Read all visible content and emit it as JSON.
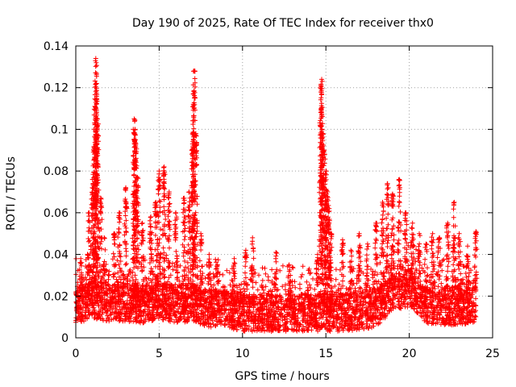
{
  "chart_data": {
    "type": "scatter",
    "title": "Day 190 of 2025, Rate Of TEC Index for receiver thx0",
    "xlabel": "GPS time / hours",
    "ylabel": "ROTI / TECUs",
    "xlim": [
      0,
      25
    ],
    "ylim": [
      0,
      0.14
    ],
    "x_ticks": [
      0,
      5,
      10,
      15,
      20,
      25
    ],
    "x_tick_labels": [
      "0",
      "5",
      "10",
      "15",
      "20",
      "25"
    ],
    "y_ticks": [
      0,
      0.02,
      0.04,
      0.06,
      0.08,
      0.1,
      0.12,
      0.14
    ],
    "y_tick_labels": [
      "0",
      "0.02",
      "0.04",
      "0.06",
      "0.08",
      "0.1",
      "0.12",
      "0.14"
    ],
    "grid": true,
    "marker": "+",
    "colors": {
      "points": "#ff0000",
      "grid": "#a0a0a0",
      "axes": "#000000"
    },
    "baseline_profile": [
      [
        0.0,
        0.016
      ],
      [
        1.0,
        0.018
      ],
      [
        2.0,
        0.017
      ],
      [
        3.0,
        0.017
      ],
      [
        4.0,
        0.016
      ],
      [
        5.0,
        0.018
      ],
      [
        6.0,
        0.016
      ],
      [
        7.0,
        0.017
      ],
      [
        8.0,
        0.014
      ],
      [
        9.0,
        0.014
      ],
      [
        10.0,
        0.012
      ],
      [
        11.0,
        0.012
      ],
      [
        12.0,
        0.012
      ],
      [
        13.0,
        0.012
      ],
      [
        14.0,
        0.012
      ],
      [
        15.0,
        0.012
      ],
      [
        16.0,
        0.012
      ],
      [
        17.0,
        0.013
      ],
      [
        18.0,
        0.014
      ],
      [
        18.5,
        0.018
      ],
      [
        19.0,
        0.022
      ],
      [
        20.0,
        0.024
      ],
      [
        21.0,
        0.016
      ],
      [
        22.0,
        0.015
      ],
      [
        23.0,
        0.015
      ],
      [
        24.0,
        0.016
      ]
    ],
    "peaks": [
      {
        "x": 0.3,
        "y": 0.038
      },
      {
        "x": 0.8,
        "y": 0.06
      },
      {
        "x": 1.0,
        "y": 0.076
      },
      {
        "x": 1.1,
        "y": 0.091
      },
      {
        "x": 1.15,
        "y": 0.111
      },
      {
        "x": 1.2,
        "y": 0.134
      },
      {
        "x": 1.25,
        "y": 0.122
      },
      {
        "x": 1.3,
        "y": 0.105
      },
      {
        "x": 1.5,
        "y": 0.067
      },
      {
        "x": 1.7,
        "y": 0.048
      },
      {
        "x": 2.3,
        "y": 0.05
      },
      {
        "x": 2.6,
        "y": 0.06
      },
      {
        "x": 3.0,
        "y": 0.072
      },
      {
        "x": 3.5,
        "y": 0.105
      },
      {
        "x": 3.55,
        "y": 0.1
      },
      {
        "x": 3.6,
        "y": 0.093
      },
      {
        "x": 3.7,
        "y": 0.077
      },
      {
        "x": 4.0,
        "y": 0.055
      },
      {
        "x": 4.5,
        "y": 0.058
      },
      {
        "x": 4.8,
        "y": 0.065
      },
      {
        "x": 5.0,
        "y": 0.08
      },
      {
        "x": 5.3,
        "y": 0.082
      },
      {
        "x": 5.6,
        "y": 0.07
      },
      {
        "x": 6.0,
        "y": 0.06
      },
      {
        "x": 6.5,
        "y": 0.067
      },
      {
        "x": 6.8,
        "y": 0.07
      },
      {
        "x": 7.0,
        "y": 0.093
      },
      {
        "x": 7.05,
        "y": 0.112
      },
      {
        "x": 7.1,
        "y": 0.128
      },
      {
        "x": 7.2,
        "y": 0.098
      },
      {
        "x": 7.5,
        "y": 0.05
      },
      {
        "x": 8.0,
        "y": 0.04
      },
      {
        "x": 8.5,
        "y": 0.035
      },
      {
        "x": 9.5,
        "y": 0.038
      },
      {
        "x": 10.2,
        "y": 0.042
      },
      {
        "x": 10.6,
        "y": 0.048
      },
      {
        "x": 12.0,
        "y": 0.041
      },
      {
        "x": 12.8,
        "y": 0.035
      },
      {
        "x": 14.0,
        "y": 0.033
      },
      {
        "x": 14.5,
        "y": 0.04
      },
      {
        "x": 14.7,
        "y": 0.121
      },
      {
        "x": 14.75,
        "y": 0.124
      },
      {
        "x": 14.8,
        "y": 0.098
      },
      {
        "x": 14.9,
        "y": 0.09
      },
      {
        "x": 15.0,
        "y": 0.08
      },
      {
        "x": 15.1,
        "y": 0.07
      },
      {
        "x": 15.2,
        "y": 0.062
      },
      {
        "x": 15.3,
        "y": 0.05
      },
      {
        "x": 16.0,
        "y": 0.047
      },
      {
        "x": 16.5,
        "y": 0.042
      },
      {
        "x": 17.0,
        "y": 0.05
      },
      {
        "x": 17.5,
        "y": 0.045
      },
      {
        "x": 18.0,
        "y": 0.055
      },
      {
        "x": 18.4,
        "y": 0.065
      },
      {
        "x": 18.7,
        "y": 0.074
      },
      {
        "x": 19.0,
        "y": 0.069
      },
      {
        "x": 19.4,
        "y": 0.076
      },
      {
        "x": 19.8,
        "y": 0.06
      },
      {
        "x": 20.2,
        "y": 0.055
      },
      {
        "x": 20.6,
        "y": 0.05
      },
      {
        "x": 21.0,
        "y": 0.045
      },
      {
        "x": 21.4,
        "y": 0.05
      },
      {
        "x": 21.8,
        "y": 0.048
      },
      {
        "x": 22.3,
        "y": 0.055
      },
      {
        "x": 22.7,
        "y": 0.065
      },
      {
        "x": 23.0,
        "y": 0.05
      },
      {
        "x": 23.5,
        "y": 0.044
      },
      {
        "x": 24.0,
        "y": 0.051
      }
    ]
  }
}
